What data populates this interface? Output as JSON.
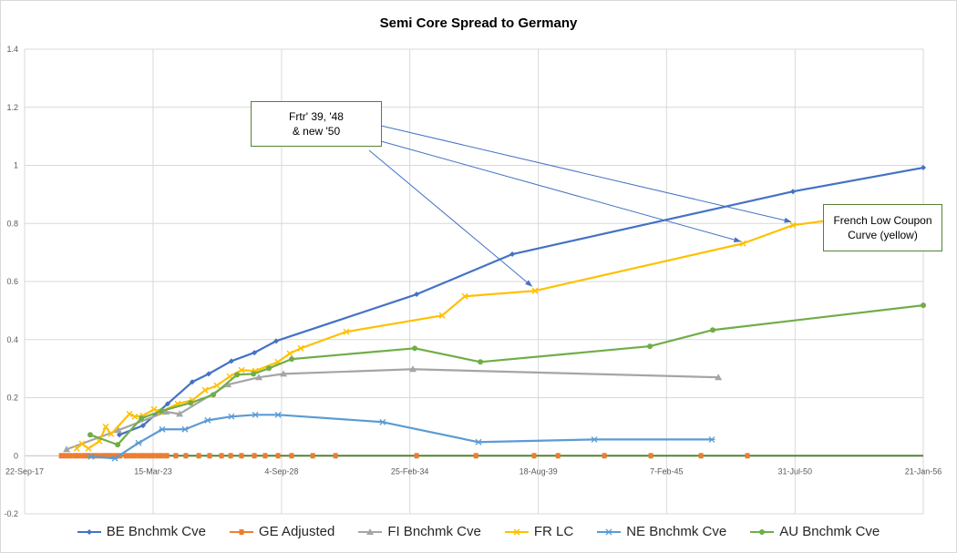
{
  "chart_data": {
    "type": "line",
    "title": "Semi Core Spread to Germany",
    "xlabel": "",
    "ylabel": "",
    "xlim": [
      2017.72,
      2056.05
    ],
    "ylim": [
      -0.2,
      1.4
    ],
    "grid": true,
    "legend_position": "bottom",
    "x_ticks": [
      {
        "v": 2017.72,
        "label": "22-Sep-17"
      },
      {
        "v": 2023.2,
        "label": "15-Mar-23"
      },
      {
        "v": 2028.68,
        "label": "4-Sep-28"
      },
      {
        "v": 2034.15,
        "label": "25-Feb-34"
      },
      {
        "v": 2039.63,
        "label": "18-Aug-39"
      },
      {
        "v": 2045.1,
        "label": "7-Feb-45"
      },
      {
        "v": 2050.58,
        "label": "31-Jul-50"
      },
      {
        "v": 2056.05,
        "label": "21-Jan-56"
      }
    ],
    "y_ticks": [
      {
        "v": -0.2,
        "label": "-0.2"
      },
      {
        "v": 0,
        "label": "0"
      },
      {
        "v": 0.2,
        "label": "0.2"
      },
      {
        "v": 0.4,
        "label": "0.4"
      },
      {
        "v": 0.6,
        "label": "0.6"
      },
      {
        "v": 0.8,
        "label": "0.8"
      },
      {
        "v": 1,
        "label": "1"
      },
      {
        "v": 1.2,
        "label": "1.2"
      },
      {
        "v": 1.4,
        "label": "1.4"
      }
    ],
    "series": [
      {
        "name": "BE Bnchmk Cve",
        "color": "#4472c4",
        "marker": "diamond",
        "line": true,
        "x": [
          2021.76,
          2022.77,
          2023.82,
          2024.87,
          2025.57,
          2026.54,
          2027.52,
          2028.45,
          2034.44,
          2038.52,
          2050.49,
          2056.05
        ],
        "y": [
          0.072,
          0.104,
          0.179,
          0.254,
          0.282,
          0.326,
          0.355,
          0.395,
          0.556,
          0.694,
          0.91,
          0.992
        ]
      },
      {
        "name": "GE Adjusted",
        "color": "#ed7d31",
        "marker": "square",
        "line": false,
        "x": [
          2019.28,
          2019.47,
          2019.66,
          2019.86,
          2020.05,
          2020.25,
          2020.44,
          2020.64,
          2020.83,
          2021.03,
          2021.22,
          2021.41,
          2021.61,
          2021.8,
          2022.04,
          2022.23,
          2022.42,
          2022.62,
          2022.81,
          2023.01,
          2023.2,
          2023.4,
          2023.59,
          2023.79,
          2024.17,
          2024.6,
          2025.15,
          2025.61,
          2026.12,
          2026.51,
          2026.97,
          2027.52,
          2027.98,
          2028.53,
          2029.11,
          2030.01,
          2030.98,
          2034.44,
          2036.97,
          2039.45,
          2040.47,
          2042.45,
          2044.43,
          2046.57,
          2048.55
        ],
        "y": [
          0,
          0,
          0,
          0,
          0,
          0,
          0,
          0,
          0,
          0,
          0,
          0,
          0,
          0,
          0,
          0,
          0,
          0,
          0,
          0,
          0,
          0,
          0,
          0,
          0,
          0,
          0,
          0,
          0,
          0,
          0,
          0,
          0,
          0,
          0,
          0,
          0,
          0,
          0,
          0,
          0,
          0,
          0,
          0,
          0
        ]
      },
      {
        "name": "FI Bnchmk Cve",
        "color": "#a5a5a5",
        "marker": "triangle",
        "line": true,
        "x": [
          2019.51,
          2021.72,
          2023.75,
          2024.33,
          2026.39,
          2027.71,
          2028.76,
          2034.28,
          2047.31
        ],
        "y": [
          0.022,
          0.088,
          0.151,
          0.144,
          0.245,
          0.27,
          0.282,
          0.298,
          0.27
        ]
      },
      {
        "name": "FR LC",
        "color": "#ffc000",
        "marker": "x",
        "line": true,
        "x": [
          2019.94,
          2020.17,
          2020.44,
          2020.91,
          2021.18,
          2021.41,
          2022.19,
          2022.42,
          2022.77,
          2023.24,
          2023.51,
          2024.25,
          2024.87,
          2025.42,
          2025.92,
          2026.47,
          2026.97,
          2027.56,
          2028.53,
          2029.03,
          2029.5,
          2031.44,
          2035.53,
          2036.5,
          2039.49,
          2048.36,
          2050.49,
          2056.05
        ],
        "y": [
          0.025,
          0.041,
          0.025,
          0.05,
          0.1,
          0.075,
          0.144,
          0.135,
          0.138,
          0.16,
          0.151,
          0.179,
          0.191,
          0.226,
          0.242,
          0.273,
          0.295,
          0.292,
          0.323,
          0.352,
          0.37,
          0.427,
          0.483,
          0.549,
          0.568,
          0.731,
          0.794,
          0.854
        ]
      },
      {
        "name": "NE Bnchmk Cve",
        "color": "#5b9bd5",
        "marker": "asterisk",
        "line": true,
        "x": [
          2020.56,
          2021.57,
          2022.58,
          2023.59,
          2024.56,
          2025.53,
          2026.54,
          2027.56,
          2028.53,
          2032.99,
          2037.08,
          2042.02,
          2047.03
        ],
        "y": [
          -0.003,
          -0.009,
          0.044,
          0.091,
          0.091,
          0.122,
          0.135,
          0.141,
          0.141,
          0.116,
          0.047,
          0.056,
          0.056
        ]
      },
      {
        "name": "AU Bnchmk Cve",
        "color": "#70ad47",
        "marker": "circle",
        "line": true,
        "x": [
          2020.52,
          2021.69,
          2022.7,
          2023.55,
          2024.8,
          2025.77,
          2026.78,
          2027.48,
          2028.14,
          2029.11,
          2034.36,
          2037.16,
          2044.39,
          2047.07,
          2056.05
        ],
        "y": [
          0.072,
          0.038,
          0.129,
          0.154,
          0.182,
          0.21,
          0.279,
          0.282,
          0.301,
          0.333,
          0.37,
          0.323,
          0.377,
          0.433,
          0.518
        ]
      }
    ],
    "annotations": [
      {
        "id": "frtr",
        "lines": [
          "Frtr' 39, '48",
          "& new '50"
        ],
        "arrow_targets": [
          [
            2050.4,
            0.806
          ],
          [
            2048.25,
            0.738
          ],
          [
            2039.35,
            0.584
          ]
        ]
      },
      {
        "id": "french-lc",
        "lines": [
          "French Low Coupon",
          "Curve (yellow)"
        ],
        "arrow_targets": []
      }
    ]
  }
}
